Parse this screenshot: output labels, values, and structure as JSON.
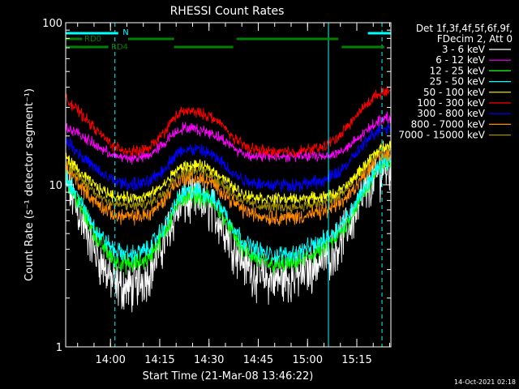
{
  "chart_data": {
    "type": "line",
    "title": "RHESSI Count Rates",
    "xlabel": "Start Time (21-Mar-08 13:46:22)",
    "ylabel": "Count Rate (s⁻¹ detector segment⁻¹)",
    "yscale": "log",
    "ylim": [
      1,
      100
    ],
    "xlim_minutes": [
      0,
      99
    ],
    "x_tick_labels": [
      "14:00",
      "14:15",
      "14:30",
      "14:45",
      "15:00",
      "15:15"
    ],
    "x_tick_minutes": [
      13.63,
      28.63,
      43.63,
      58.63,
      73.63,
      88.63
    ],
    "y_tick_labels": [
      "1",
      "10",
      "100"
    ],
    "legend": {
      "position": "top-right",
      "header_line1": "Det 1f,3f,4f,5f,6f,9f,",
      "header_line2": "FDecim 2, Att 0"
    },
    "x_minutes": [
      0,
      5,
      10,
      15,
      20,
      25,
      30,
      33,
      36,
      40,
      44,
      48,
      51,
      54,
      58,
      62,
      66,
      70,
      74,
      78,
      82,
      86,
      90,
      94,
      97
    ],
    "series": [
      {
        "name": "3 - 6 keV",
        "color": "#ffffff",
        "values": [
          10.5,
          6.0,
          3.5,
          2.4,
          2.3,
          2.8,
          4.5,
          6.5,
          7.8,
          8.0,
          7.2,
          5.5,
          4.2,
          3.4,
          2.8,
          2.6,
          2.6,
          2.7,
          3.0,
          3.5,
          4.0,
          5.5,
          8.0,
          11.0,
          12.5
        ],
        "noise": 0.22
      },
      {
        "name": "6 - 12 keV",
        "color": "#ff00ff",
        "values": [
          23.0,
          20.0,
          17.0,
          15.0,
          14.5,
          15.0,
          18.0,
          21.0,
          22.5,
          22.0,
          21.0,
          19.0,
          17.0,
          15.5,
          15.0,
          15.0,
          15.0,
          15.0,
          15.0,
          15.0,
          15.5,
          17.0,
          20.0,
          24.0,
          26.0
        ],
        "noise": 0.05
      },
      {
        "name": "12 - 25 keV",
        "color": "#00ff00",
        "values": [
          11.0,
          7.0,
          4.5,
          3.4,
          3.2,
          3.5,
          5.0,
          7.0,
          8.5,
          8.6,
          8.0,
          6.5,
          5.0,
          4.0,
          3.5,
          3.2,
          3.2,
          3.3,
          3.6,
          4.0,
          4.6,
          6.0,
          8.5,
          11.5,
          13.5
        ],
        "noise": 0.09
      },
      {
        "name": "25 - 50 keV",
        "color": "#00ffff",
        "values": [
          11.5,
          7.5,
          5.0,
          3.9,
          3.7,
          4.0,
          5.5,
          7.5,
          9.0,
          9.2,
          8.5,
          7.0,
          5.5,
          4.5,
          4.0,
          3.7,
          3.7,
          3.8,
          4.1,
          4.5,
          5.2,
          6.5,
          9.0,
          12.0,
          14.0
        ],
        "noise": 0.08
      },
      {
        "name": "50 - 100 keV",
        "color": "#ffff00",
        "values": [
          15.0,
          11.5,
          9.5,
          8.5,
          8.3,
          8.5,
          10.0,
          12.0,
          13.0,
          13.2,
          12.6,
          11.0,
          9.7,
          8.8,
          8.4,
          8.2,
          8.2,
          8.2,
          8.3,
          8.4,
          8.8,
          10.0,
          12.5,
          15.5,
          17.5
        ],
        "noise": 0.05
      },
      {
        "name": "100 - 300 keV",
        "color": "#ff0000",
        "values": [
          34.0,
          27.0,
          21.0,
          17.0,
          16.0,
          16.5,
          21.0,
          26.0,
          28.5,
          28.0,
          26.5,
          23.0,
          19.5,
          17.5,
          16.5,
          16.0,
          16.0,
          16.0,
          16.5,
          17.0,
          19.0,
          23.0,
          29.0,
          35.0,
          38.0
        ],
        "noise": 0.05
      },
      {
        "name": "300 - 800 keV",
        "color": "#0000ff",
        "values": [
          19.0,
          15.0,
          12.0,
          10.5,
          10.0,
          10.3,
          12.5,
          15.0,
          16.5,
          16.5,
          15.5,
          13.5,
          11.8,
          10.8,
          10.3,
          10.0,
          10.0,
          10.0,
          10.2,
          10.5,
          11.5,
          13.5,
          17.0,
          21.0,
          22.5
        ],
        "noise": 0.06
      },
      {
        "name": "800 - 7000 keV",
        "color": "#ff8c00",
        "values": [
          13.0,
          9.5,
          7.5,
          6.5,
          6.3,
          6.5,
          8.0,
          10.0,
          11.0,
          11.0,
          10.4,
          9.0,
          7.8,
          7.0,
          6.5,
          6.3,
          6.3,
          6.3,
          6.5,
          6.8,
          7.3,
          8.5,
          11.0,
          14.0,
          15.5
        ],
        "noise": 0.07
      },
      {
        "name": "7000 - 15000 keV",
        "color": "#a08c00",
        "values": [
          14.0,
          10.5,
          8.6,
          7.6,
          7.4,
          7.6,
          9.0,
          11.0,
          12.0,
          12.2,
          11.6,
          10.0,
          8.8,
          8.0,
          7.5,
          7.3,
          7.3,
          7.3,
          7.5,
          7.7,
          8.2,
          9.5,
          12.0,
          15.0,
          16.5
        ],
        "noise": 0.05
      }
    ],
    "state_bars": [
      {
        "label": "N",
        "color": "#00ffff",
        "segments_minutes": [
          [
            0,
            16
          ],
          [
            92,
            99
          ]
        ]
      },
      {
        "label": "RD0",
        "color": "#008000",
        "segments_minutes": [
          [
            0,
            5
          ],
          [
            19,
            33
          ],
          [
            52,
            83
          ]
        ]
      },
      {
        "label": "RD4",
        "color": "#008000",
        "segments_minutes": [
          [
            0,
            13
          ],
          [
            33,
            51
          ],
          [
            84,
            97
          ]
        ]
      }
    ],
    "markers_minutes": [
      {
        "minute": 15.0,
        "style": "dashed",
        "color": "#00ffff"
      },
      {
        "minute": 80.0,
        "style": "solid",
        "color": "#00ffff"
      },
      {
        "minute": 96.3,
        "style": "dashed",
        "color": "#00ffff"
      }
    ],
    "timestamp": "14-Oct-2021 02:18"
  }
}
